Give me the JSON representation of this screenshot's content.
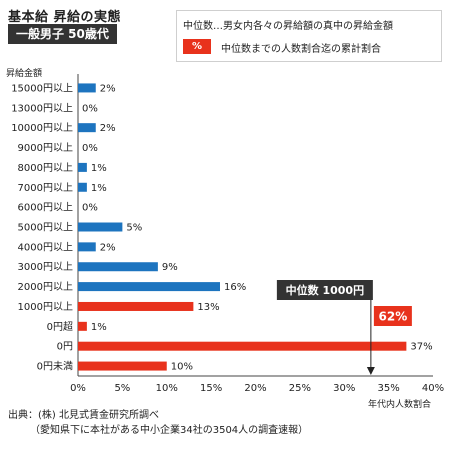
{
  "header": {
    "title": "基本給 昇給の実態",
    "subtitle": "一般男子 50歳代"
  },
  "legend": {
    "median_note": "中位数…男女内各々の昇給額の真中の昇給金額",
    "swatch_label": "%",
    "cumulative_note": "中位数までの人数割合迄の累計割合"
  },
  "source": {
    "line1": "出典：(株) 北見式賃金研究所調べ",
    "line2": "（愛知県下に本社がある中小企業34社の3504人の調査速報）"
  },
  "colors": {
    "blue": "#1d74bf",
    "red": "#e8321c",
    "dark": "#333333"
  },
  "chart_data": {
    "type": "bar",
    "orientation": "horizontal",
    "ylabel": "昇給金額",
    "xlabel": "年代内人数割合",
    "xlim": [
      0,
      40
    ],
    "xticks": [
      "0%",
      "5%",
      "10%",
      "15%",
      "20%",
      "25%",
      "30%",
      "35%",
      "40%"
    ],
    "categories": [
      "15000円以上",
      "13000円以上",
      "10000円以上",
      "9000円以上",
      "8000円以上",
      "7000円以上",
      "6000円以上",
      "5000円以上",
      "4000円以上",
      "3000円以上",
      "2000円以上",
      "1000円以上",
      "0円超",
      "0円",
      "0円未満"
    ],
    "values": [
      2,
      0,
      2,
      0,
      1,
      1,
      0,
      5,
      2,
      9,
      16,
      13,
      1,
      37,
      10
    ],
    "value_labels": [
      "2%",
      "0%",
      "2%",
      "0%",
      "1%",
      "1%",
      "0%",
      "5%",
      "2%",
      "9%",
      "16%",
      "13%",
      "1%",
      "37%",
      "10%"
    ],
    "bar_colors": [
      "blue",
      "blue",
      "blue",
      "blue",
      "blue",
      "blue",
      "blue",
      "blue",
      "blue",
      "blue",
      "blue",
      "red",
      "red",
      "red",
      "red"
    ],
    "annotations": {
      "median_label": "中位数 1000円",
      "median_value": 33,
      "cumulative_label": "62%"
    }
  }
}
